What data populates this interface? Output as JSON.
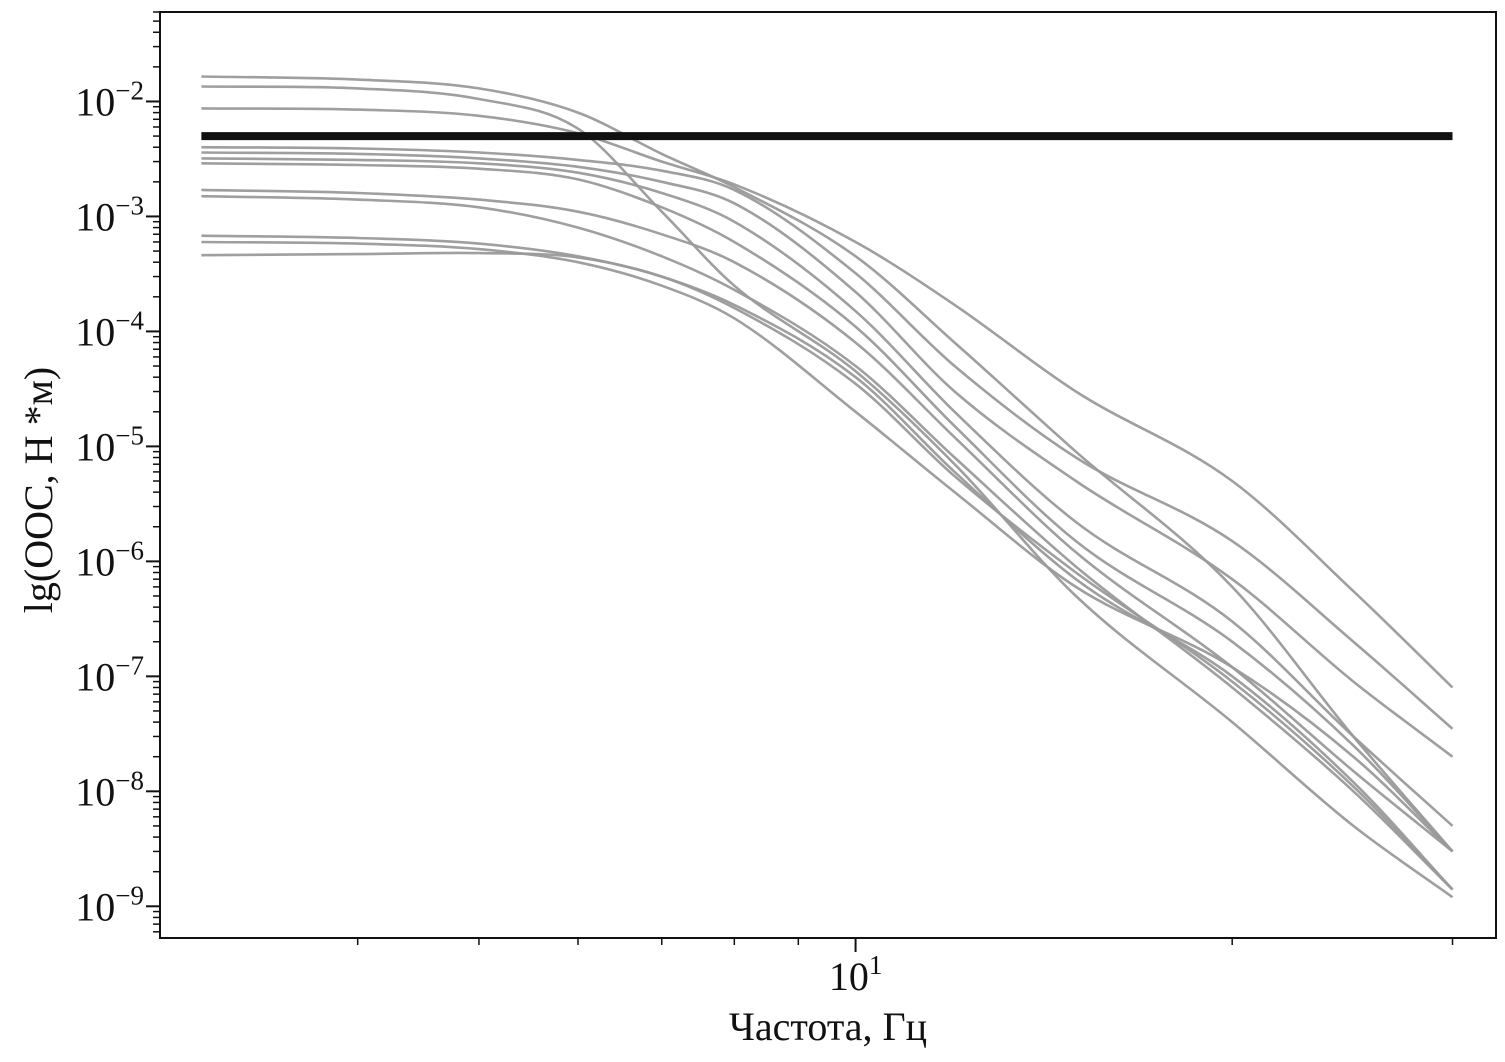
{
  "chart_data": {
    "type": "line",
    "title": "",
    "xlabel": "Частота, Гц",
    "ylabel": "lg(OOC, H *м)",
    "x_scale": "log",
    "y_scale": "log",
    "xlim": [
      2.78,
      32.5
    ],
    "ylim": [
      5.3e-10,
      0.06
    ],
    "grid": false,
    "legend": "none",
    "x_ticks": [
      {
        "base": "10",
        "exp": "1",
        "value": 10
      }
    ],
    "x_minor_ticks": [
      4,
      5,
      6,
      7,
      8,
      9,
      20,
      30
    ],
    "y_ticks": [
      {
        "base": "10",
        "exp": "−2",
        "value": 0.01
      },
      {
        "base": "10",
        "exp": "−3",
        "value": 0.001
      },
      {
        "base": "10",
        "exp": "−4",
        "value": 0.0001
      },
      {
        "base": "10",
        "exp": "−5",
        "value": 1e-05
      },
      {
        "base": "10",
        "exp": "−6",
        "value": 1e-06
      },
      {
        "base": "10",
        "exp": "−7",
        "value": 1e-07
      },
      {
        "base": "10",
        "exp": "−8",
        "value": 1e-08
      },
      {
        "base": "10",
        "exp": "−9",
        "value": 1e-09
      }
    ],
    "x": [
      3.0,
      4.0,
      5.0,
      6.0,
      7.0,
      8.0,
      10.0,
      12.0,
      15.0,
      20.0,
      25.0,
      30.0
    ],
    "threshold": {
      "value": 0.005,
      "color": "#111111",
      "x_range": [
        3.0,
        30.0
      ]
    },
    "curve_color": "#9a9a9a",
    "series": [
      {
        "values": [
          0.0165,
          0.0155,
          0.013,
          0.008,
          0.0035,
          0.0018,
          0.00045,
          8e-05,
          9e-06,
          6e-07,
          3e-08,
          3e-09
        ]
      },
      {
        "values": [
          0.0135,
          0.013,
          0.0105,
          0.0058,
          0.0011,
          0.00025,
          4.5e-05,
          7e-06,
          5e-07,
          4e-08,
          5e-09,
          1.2e-09
        ]
      },
      {
        "values": [
          0.0087,
          0.0085,
          0.0075,
          0.0053,
          0.003,
          0.0019,
          0.0006,
          0.00017,
          3e-05,
          5e-06,
          5.5e-07,
          8e-08
        ]
      },
      {
        "values": [
          0.004,
          0.0039,
          0.0036,
          0.0031,
          0.0025,
          0.0017,
          0.00032,
          5e-05,
          8e-06,
          1.5e-06,
          2e-07,
          3.5e-08
        ]
      },
      {
        "values": [
          0.0036,
          0.0035,
          0.0032,
          0.0027,
          0.002,
          0.0013,
          0.00022,
          3e-05,
          5e-06,
          7e-07,
          9e-08,
          2e-08
        ]
      },
      {
        "values": [
          0.0032,
          0.0031,
          0.0029,
          0.0024,
          0.0016,
          0.0009,
          0.00015,
          2e-05,
          2.2e-06,
          3e-07,
          3e-08,
          5e-09
        ]
      },
      {
        "values": [
          0.0029,
          0.0028,
          0.0026,
          0.0021,
          0.0012,
          0.0006,
          0.00011,
          1.5e-05,
          1.5e-06,
          2e-07,
          2.5e-08,
          3e-09
        ]
      },
      {
        "values": [
          0.0017,
          0.0016,
          0.0014,
          0.0011,
          0.0007,
          0.0004,
          8e-05,
          1.2e-05,
          1.2e-06,
          1.2e-07,
          1.5e-08,
          3e-09
        ]
      },
      {
        "values": [
          0.0015,
          0.0014,
          0.0012,
          0.0008,
          0.00045,
          0.00023,
          5e-05,
          8e-06,
          9e-07,
          8e-08,
          1e-08,
          1.4e-09
        ]
      },
      {
        "values": [
          0.00068,
          0.00065,
          0.00058,
          0.00045,
          0.0003,
          0.00017,
          4e-05,
          6e-06,
          7e-07,
          1e-07,
          1.2e-08,
          1.4e-09
        ]
      },
      {
        "values": [
          0.0006,
          0.00058,
          0.00052,
          0.0004,
          0.00025,
          0.00013,
          2e-05,
          4e-06,
          6e-07,
          1.2e-07,
          2e-08,
          3e-09
        ]
      },
      {
        "values": [
          0.00046,
          0.00047,
          0.00048,
          0.00044,
          0.0003,
          0.00016,
          3.5e-05,
          5.5e-06,
          8e-07,
          9e-08,
          1.1e-08,
          1.4e-09
        ]
      }
    ]
  }
}
